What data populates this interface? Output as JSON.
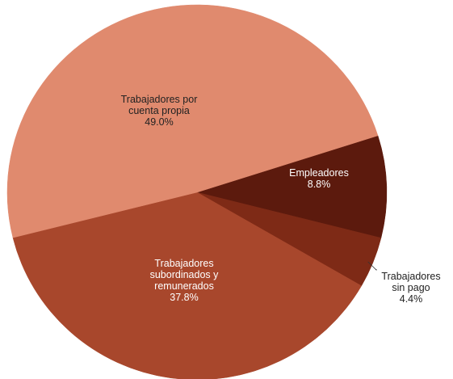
{
  "chart_data": {
    "type": "pie",
    "title": "",
    "slices": [
      {
        "label_lines": [
          "Trabajadores por",
          "cuenta propia"
        ],
        "value": 49.0,
        "value_label": "49.0%",
        "color": "#E08A6E",
        "label_color": "#222222"
      },
      {
        "label_lines": [
          "Empleadores"
        ],
        "value": 8.8,
        "value_label": "8.8%",
        "color": "#5C1A0D",
        "label_color": "#FFFFFF"
      },
      {
        "label_lines": [
          "Trabajadores",
          "sin pago"
        ],
        "value": 4.4,
        "value_label": "4.4%",
        "color": "#7E2A16",
        "label_color": "#222222"
      },
      {
        "label_lines": [
          "Trabajadores",
          "subordinados y",
          "remunerados"
        ],
        "value": 37.8,
        "value_label": "37.8%",
        "color": "#A8472C",
        "label_color": "#FFFFFF"
      }
    ]
  }
}
